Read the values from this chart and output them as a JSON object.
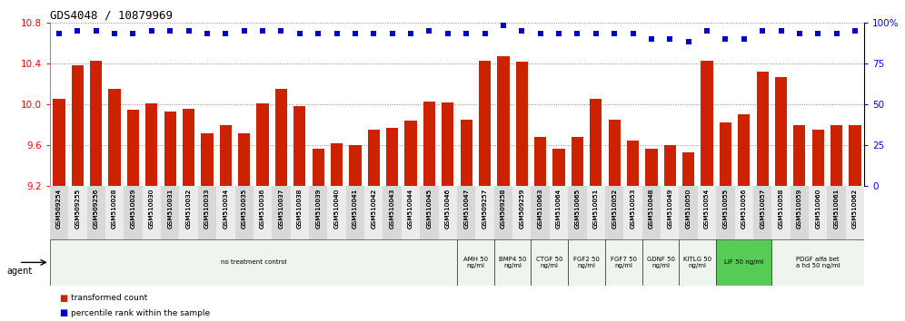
{
  "title": "GDS4048 / 10879969",
  "samples": [
    "GSM509254",
    "GSM509255",
    "GSM509256",
    "GSM510028",
    "GSM510029",
    "GSM510030",
    "GSM510031",
    "GSM510032",
    "GSM510033",
    "GSM510034",
    "GSM510035",
    "GSM510036",
    "GSM510037",
    "GSM510038",
    "GSM510039",
    "GSM510040",
    "GSM510041",
    "GSM510042",
    "GSM510043",
    "GSM510044",
    "GSM510045",
    "GSM510046",
    "GSM510047",
    "GSM509257",
    "GSM509258",
    "GSM509259",
    "GSM510063",
    "GSM510064",
    "GSM510065",
    "GSM510051",
    "GSM510052",
    "GSM510053",
    "GSM510048",
    "GSM510049",
    "GSM510050",
    "GSM510054",
    "GSM510055",
    "GSM510056",
    "GSM510057",
    "GSM510058",
    "GSM510059",
    "GSM510060",
    "GSM510061",
    "GSM510062"
  ],
  "transformed_count": [
    10.05,
    10.38,
    10.43,
    10.15,
    9.95,
    10.01,
    9.93,
    9.96,
    9.72,
    9.8,
    9.72,
    10.01,
    10.15,
    9.98,
    9.57,
    9.62,
    9.6,
    9.75,
    9.77,
    9.84,
    10.03,
    10.02,
    9.85,
    10.43,
    10.47,
    10.42,
    9.68,
    9.57,
    9.68,
    10.05,
    9.85,
    9.65,
    9.57,
    9.6,
    9.53,
    10.43,
    9.82,
    9.9,
    10.32,
    10.27,
    9.8,
    9.75,
    9.8,
    9.8
  ],
  "percentile_rank": [
    93,
    95,
    95,
    93,
    93,
    95,
    95,
    95,
    93,
    93,
    95,
    95,
    95,
    93,
    93,
    93,
    93,
    93,
    93,
    93,
    95,
    93,
    93,
    93,
    98,
    95,
    93,
    93,
    93,
    93,
    93,
    93,
    90,
    90,
    88,
    95,
    90,
    90,
    95,
    95,
    93,
    93,
    93,
    95
  ],
  "ylim_left": [
    9.2,
    10.8
  ],
  "ylim_right": [
    0,
    100
  ],
  "yticks_left": [
    9.2,
    9.6,
    10.0,
    10.4,
    10.8
  ],
  "yticks_right": [
    0,
    25,
    50,
    75,
    100
  ],
  "bar_color": "#cc2200",
  "dot_color": "#0000cc",
  "agent_groups": [
    {
      "label": "no treatment control",
      "start": 0,
      "end": 22,
      "color": "#eef5ee"
    },
    {
      "label": "AMH 50\nng/ml",
      "start": 22,
      "end": 24,
      "color": "#eef5ee"
    },
    {
      "label": "BMP4 50\nng/ml",
      "start": 24,
      "end": 26,
      "color": "#eef5ee"
    },
    {
      "label": "CTGF 50\nng/ml",
      "start": 26,
      "end": 28,
      "color": "#eef5ee"
    },
    {
      "label": "FGF2 50\nng/ml",
      "start": 28,
      "end": 30,
      "color": "#eef5ee"
    },
    {
      "label": "FGF7 50\nng/ml",
      "start": 30,
      "end": 32,
      "color": "#eef5ee"
    },
    {
      "label": "GDNF 50\nng/ml",
      "start": 32,
      "end": 34,
      "color": "#eef5ee"
    },
    {
      "label": "KITLG 50\nng/ml",
      "start": 34,
      "end": 36,
      "color": "#eef5ee"
    },
    {
      "label": "LIF 50 ng/ml",
      "start": 36,
      "end": 39,
      "color": "#55cc55"
    },
    {
      "label": "PDGF alfa bet\na hd 50 ng/ml",
      "start": 39,
      "end": 44,
      "color": "#eef5ee"
    }
  ],
  "bar_width": 0.65,
  "bg_color": "#ffffff",
  "grid_color": "#888888",
  "spine_color": "#888888"
}
